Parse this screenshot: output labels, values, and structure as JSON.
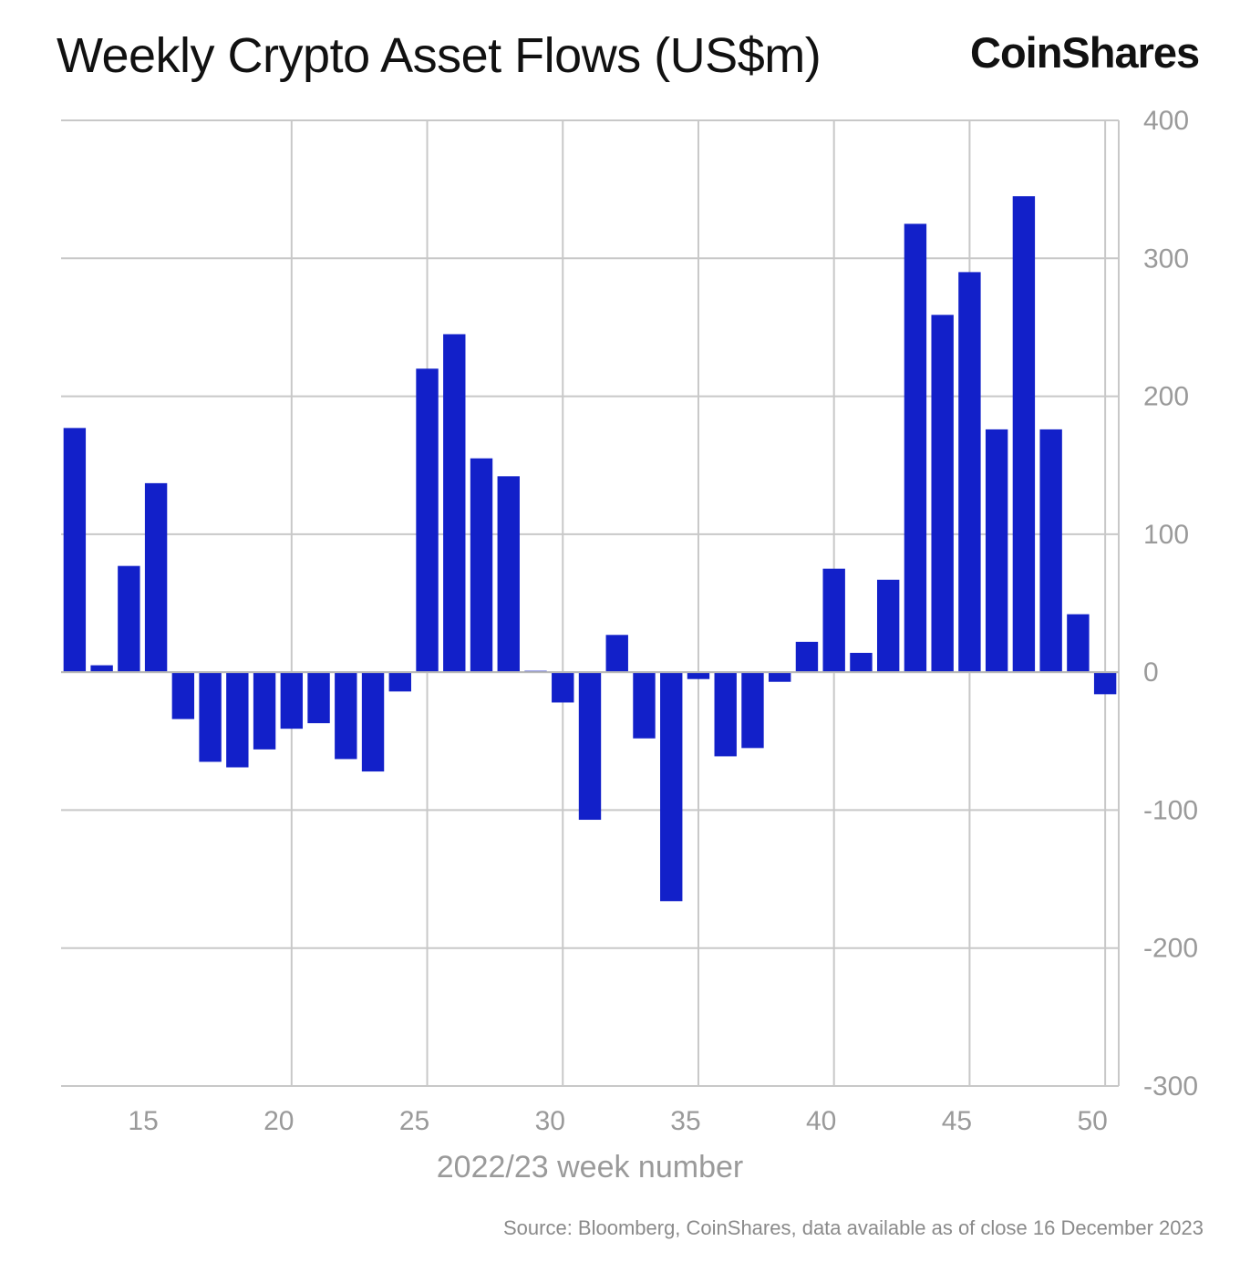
{
  "header": {
    "title": "Weekly Crypto Asset Flows (US$m)",
    "brand": "CoinShares"
  },
  "footer": {
    "source": "Source: Bloomberg, CoinShares, data available as of close 16 December 2023"
  },
  "chart_data": {
    "type": "bar",
    "title": "Weekly Crypto Asset Flows (US$m)",
    "xlabel": "2022/23 week number",
    "ylabel": "",
    "bar_color": "#1220c9",
    "x": [
      12,
      13,
      14,
      15,
      16,
      17,
      18,
      19,
      20,
      21,
      22,
      23,
      24,
      25,
      26,
      27,
      28,
      29,
      30,
      31,
      32,
      33,
      34,
      35,
      36,
      37,
      38,
      39,
      40,
      41,
      42,
      43,
      44,
      45,
      46,
      47,
      48,
      49,
      50
    ],
    "values": [
      177,
      5,
      77,
      137,
      -34,
      -65,
      -69,
      -56,
      -41,
      -37,
      -63,
      -72,
      -14,
      220,
      245,
      155,
      142,
      1,
      -22,
      -107,
      27,
      -48,
      -166,
      -5,
      -61,
      -55,
      -7,
      22,
      75,
      14,
      67,
      325,
      259,
      290,
      176,
      345,
      176,
      42,
      -16
    ],
    "xlim": [
      11.5,
      50.5
    ],
    "ylim": [
      -300,
      400
    ],
    "x_ticks": [
      "15",
      "20",
      "25",
      "30",
      "35",
      "40",
      "45",
      "50"
    ],
    "y_ticks": [
      "400",
      "300",
      "200",
      "100",
      "0",
      "-100",
      "-200",
      "-300"
    ],
    "grid": true,
    "y_axis_side": "right"
  }
}
